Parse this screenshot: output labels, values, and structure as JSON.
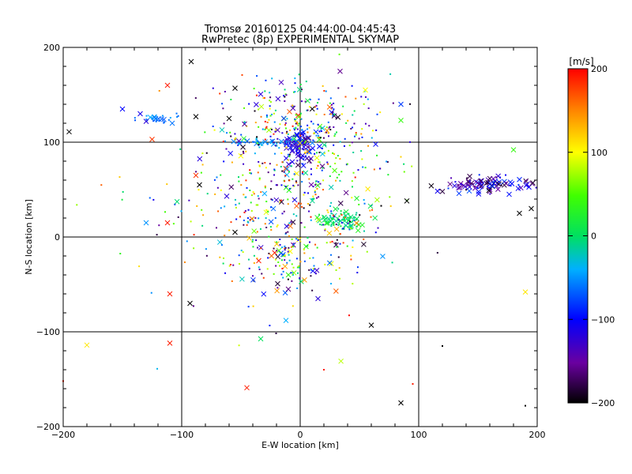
{
  "chart_data": {
    "type": "scatter",
    "title": "Tromsø 20160125 04:44:00-04:45:43",
    "subtitle": "RwPretec (8p) EXPERIMENTAL SKYMAP",
    "xlabel": "E-W location [km]",
    "ylabel": "N-S location [km]",
    "xlim": [
      -200,
      200
    ],
    "ylim": [
      -200,
      200
    ],
    "xticks": [
      -200,
      -100,
      0,
      100,
      200
    ],
    "yticks": [
      -200,
      -100,
      0,
      100,
      200
    ],
    "xtick_labels": [
      "−200",
      "−100",
      "0",
      "100",
      "200"
    ],
    "ytick_labels": [
      "−200",
      "−100",
      "0",
      "100",
      "200"
    ],
    "grid": true,
    "grid_lines": [
      -100,
      0,
      100
    ],
    "colorbar": {
      "label": "[m/s]",
      "min": -200,
      "max": 200,
      "ticks": [
        200,
        100,
        0,
        -100,
        -200
      ],
      "tick_labels": [
        "200",
        "100",
        "0",
        "−100",
        "−200"
      ]
    },
    "marker_types": [
      "x",
      "dot"
    ],
    "notable_points": [
      {
        "x": -92,
        "y": 185,
        "v": -200,
        "m": "x"
      },
      {
        "x": -112,
        "y": 160,
        "v": 190,
        "m": "x"
      },
      {
        "x": -150,
        "y": 135,
        "v": -100,
        "m": "x"
      },
      {
        "x": -135,
        "y": 130,
        "v": -110,
        "m": "x"
      },
      {
        "x": -130,
        "y": 122,
        "v": -120,
        "m": "x"
      },
      {
        "x": -122,
        "y": 125,
        "v": -60,
        "m": "x"
      },
      {
        "x": -115,
        "y": 124,
        "v": -70,
        "m": "x"
      },
      {
        "x": -108,
        "y": 120,
        "v": -60,
        "m": "x"
      },
      {
        "x": -125,
        "y": 103,
        "v": 180,
        "m": "x"
      },
      {
        "x": -88,
        "y": 127,
        "v": -200,
        "m": "x"
      },
      {
        "x": -60,
        "y": 125,
        "v": -200,
        "m": "x"
      },
      {
        "x": -55,
        "y": 157,
        "v": -200,
        "m": "x"
      },
      {
        "x": 55,
        "y": 155,
        "v": 100,
        "m": "x"
      },
      {
        "x": 85,
        "y": 123,
        "v": 40,
        "m": "x"
      },
      {
        "x": 85,
        "y": 140,
        "v": -80,
        "m": "x"
      },
      {
        "x": -88,
        "y": 65,
        "v": 180,
        "m": "x"
      },
      {
        "x": -85,
        "y": 55,
        "v": -200,
        "m": "x"
      },
      {
        "x": -62,
        "y": 43,
        "v": -120,
        "m": "x"
      },
      {
        "x": -55,
        "y": 5,
        "v": -200,
        "m": "x"
      },
      {
        "x": -35,
        "y": -25,
        "v": 190,
        "m": "x"
      },
      {
        "x": -195,
        "y": 111,
        "v": -200,
        "m": "x"
      },
      {
        "x": -130,
        "y": 15,
        "v": -50,
        "m": "x"
      },
      {
        "x": -112,
        "y": 15,
        "v": 190,
        "m": "x"
      },
      {
        "x": -110,
        "y": -60,
        "v": 190,
        "m": "x"
      },
      {
        "x": -93,
        "y": -70,
        "v": -200,
        "m": "x"
      },
      {
        "x": -110,
        "y": -112,
        "v": 190,
        "m": "x"
      },
      {
        "x": -180,
        "y": -114,
        "v": 110,
        "m": "x"
      },
      {
        "x": -45,
        "y": -159,
        "v": 190,
        "m": "x"
      },
      {
        "x": 60,
        "y": -93,
        "v": -200,
        "m": "x"
      },
      {
        "x": 85,
        "y": -175,
        "v": -200,
        "m": "x"
      },
      {
        "x": 190,
        "y": -58,
        "v": 110,
        "m": "x"
      },
      {
        "x": -12,
        "y": -88,
        "v": -40,
        "m": "x"
      },
      {
        "x": -10,
        "y": -55,
        "v": -160,
        "m": "x"
      },
      {
        "x": 15,
        "y": -65,
        "v": -120,
        "m": "x"
      },
      {
        "x": 90,
        "y": 38,
        "v": -200,
        "m": "x"
      },
      {
        "x": 120,
        "y": 48,
        "v": -180,
        "m": "x"
      },
      {
        "x": 195,
        "y": 30,
        "v": -200,
        "m": "x"
      },
      {
        "x": 185,
        "y": 25,
        "v": -200,
        "m": "x"
      },
      {
        "x": 180,
        "y": 92,
        "v": 40,
        "m": "x"
      },
      {
        "x": 120,
        "y": -115,
        "v": -200,
        "m": "dot"
      },
      {
        "x": 190,
        "y": -178,
        "v": -200,
        "m": "dot"
      },
      {
        "x": 95,
        "y": -155,
        "v": 190,
        "m": "dot"
      },
      {
        "x": 20,
        "y": -140,
        "v": 190,
        "m": "dot"
      },
      {
        "x": -200,
        "y": -152,
        "v": 190,
        "m": "dot"
      }
    ],
    "clusters": [
      {
        "cx": 0,
        "cy": 97,
        "sx": 10,
        "sy": 12,
        "n": 90,
        "vmin": -140,
        "vmax": -70,
        "xfrac": 0.55
      },
      {
        "cx": 160,
        "cy": 55,
        "sx": 28,
        "sy": 6,
        "n": 100,
        "vmin": -200,
        "vmax": -70,
        "xfrac": 0.65
      },
      {
        "cx": 35,
        "cy": 18,
        "sx": 14,
        "sy": 7,
        "n": 85,
        "vmin": -20,
        "vmax": 30,
        "xfrac": 0.3
      },
      {
        "cx": -120,
        "cy": 124,
        "sx": 10,
        "sy": 3,
        "n": 25,
        "vmin": -75,
        "vmax": -40,
        "xfrac": 0.4
      },
      {
        "cx": -30,
        "cy": 100,
        "sx": 25,
        "sy": 3,
        "n": 45,
        "vmin": -70,
        "vmax": -30,
        "xfrac": 0.3
      },
      {
        "cx": 0,
        "cy": 120,
        "sx": 45,
        "sy": 35,
        "n": 280,
        "vmin": -200,
        "vmax": 200,
        "xfrac": 0.15
      },
      {
        "cx": 0,
        "cy": 35,
        "sx": 55,
        "sy": 55,
        "n": 300,
        "vmin": -200,
        "vmax": 200,
        "xfrac": 0.15
      },
      {
        "cx": -10,
        "cy": -20,
        "sx": 25,
        "sy": 25,
        "n": 90,
        "vmin": -200,
        "vmax": 150,
        "xfrac": 0.2
      },
      {
        "cx": -40,
        "cy": 30,
        "sx": 90,
        "sy": 90,
        "n": 150,
        "vmin": -200,
        "vmax": 200,
        "xfrac": 0.1
      }
    ]
  }
}
